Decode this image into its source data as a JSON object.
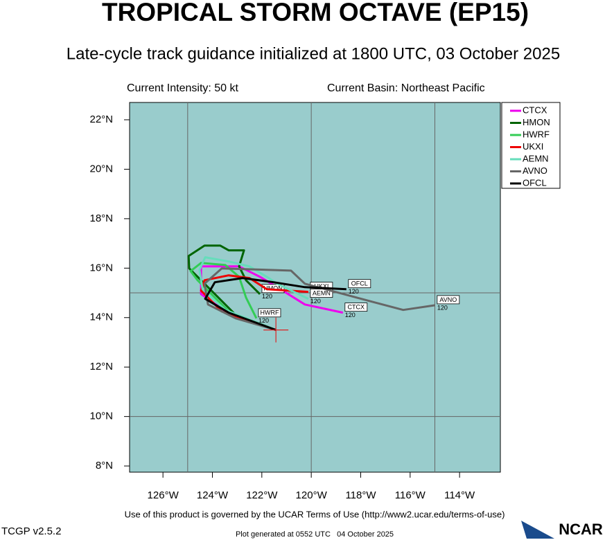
{
  "chart_data": {
    "type": "track",
    "title": "TROPICAL STORM OCTAVE (EP15)",
    "subtitle": "Late-cycle track guidance initialized at 1800 UTC, 03 October 2025",
    "intensity": "Current Intensity: 50 kt",
    "basin": "Current Basin: Northeast Pacific",
    "xlim": [
      -127.35,
      -112.35
    ],
    "ylim": [
      7.75,
      22.7
    ],
    "xticks": [
      {
        "value": -126,
        "label": "126°W"
      },
      {
        "value": -124,
        "label": "124°W"
      },
      {
        "value": -122,
        "label": "122°W"
      },
      {
        "value": -120,
        "label": "120°W"
      },
      {
        "value": -118,
        "label": "118°W"
      },
      {
        "value": -116,
        "label": "116°W"
      },
      {
        "value": -114,
        "label": "114°W"
      }
    ],
    "yticks": [
      {
        "value": 8,
        "label": "8°N"
      },
      {
        "value": 10,
        "label": "10°N"
      },
      {
        "value": 12,
        "label": "12°N"
      },
      {
        "value": 14,
        "label": "14°N"
      },
      {
        "value": 16,
        "label": "16°N"
      },
      {
        "value": 18,
        "label": "18°N"
      },
      {
        "value": 20,
        "label": "20°N"
      },
      {
        "value": 22,
        "label": "22°N"
      }
    ],
    "grid_lon": [
      -125,
      -120,
      -115
    ],
    "grid_lat": [
      10,
      15
    ],
    "storm_position": [
      -121.43,
      13.5
    ],
    "end_hour": "120",
    "series": [
      {
        "name": "CTCX",
        "color": "#ee00ee",
        "lon": [
          -121.43,
          -123.34,
          -124.46,
          -124.46,
          -122.92,
          -122.08,
          -121.38,
          -120.26,
          -118.72
        ],
        "lat": [
          13.5,
          14.17,
          14.95,
          16.07,
          16.07,
          15.65,
          15.23,
          14.53,
          14.2
        ]
      },
      {
        "name": "HMON",
        "color": "#006400",
        "lon": [
          -121.43,
          -123.06,
          -124.04,
          -124.94,
          -124.96,
          -124.32,
          -123.68,
          -123.34,
          -122.72,
          -122.92,
          -122.64,
          -122.08
        ],
        "lat": [
          13.5,
          14.11,
          15.09,
          15.99,
          16.49,
          16.91,
          16.91,
          16.72,
          16.72,
          16.07,
          15.51,
          14.95
        ]
      },
      {
        "name": "HWRF",
        "color": "#33cc55",
        "lon": [
          -121.43,
          -123.34,
          -124.6,
          -124.88,
          -124.46,
          -123.48,
          -122.92,
          -122.64,
          -122.22
        ],
        "lat": [
          13.5,
          14.25,
          15.51,
          15.88,
          16.21,
          16.13,
          15.65,
          14.81,
          13.97
        ]
      },
      {
        "name": "UKXI",
        "color": "#ee0000",
        "lon": [
          -121.43,
          -123.62,
          -124.46,
          -124.32,
          -123.34,
          -122.5,
          -121.8,
          -120.12
        ],
        "lat": [
          13.5,
          14.25,
          15.09,
          15.51,
          15.71,
          15.6,
          15.15,
          15.04
        ]
      },
      {
        "name": "AEMN",
        "color": "#66ddbb",
        "lon": [
          -121.43,
          -123.48,
          -124.4,
          -124.52,
          -124.29,
          -123.34,
          -122.5,
          -121.8,
          -121.38,
          -120.12
        ],
        "lat": [
          13.5,
          14.31,
          15.15,
          15.93,
          16.44,
          16.27,
          16.07,
          15.65,
          15.37,
          14.76
        ]
      },
      {
        "name": "AVNO",
        "color": "#666666",
        "lon": [
          -121.43,
          -123.06,
          -124.18,
          -124.32,
          -123.62,
          -120.82,
          -120.26,
          -117.46,
          -116.28,
          -114.99
        ],
        "lat": [
          13.5,
          13.97,
          14.53,
          15.37,
          15.99,
          15.9,
          15.37,
          14.62,
          14.31,
          14.5
        ]
      },
      {
        "name": "OFCL",
        "color": "#000000",
        "lon": [
          -121.43,
          -123.34,
          -124.29,
          -123.9,
          -122.78,
          -121.52,
          -120.26,
          -118.58
        ],
        "lat": [
          13.5,
          14.2,
          14.76,
          15.43,
          15.6,
          15.43,
          15.23,
          15.15
        ]
      }
    ],
    "terms": "Use of this product is governed by the UCAR Terms of Use (http://www2.ucar.edu/terms-of-use)",
    "version": "TCGP v2.5.2",
    "generated": "Plot generated at 0552 UTC   04 October 2025",
    "logo": "NCAR"
  }
}
